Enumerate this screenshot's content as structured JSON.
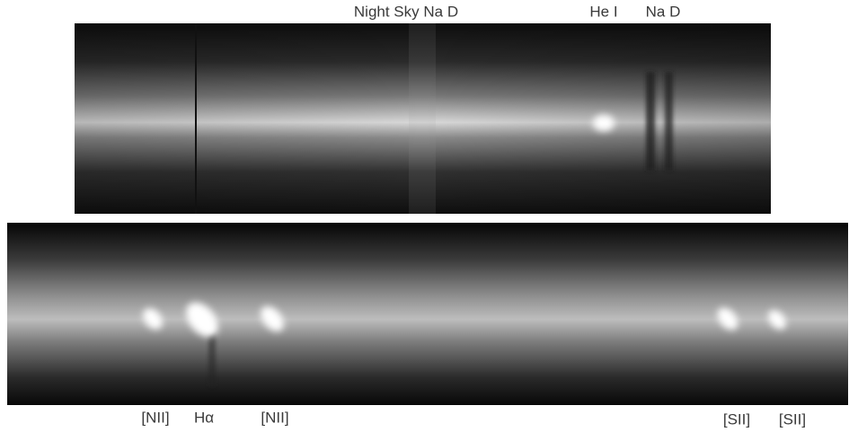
{
  "top_panel": {
    "labels": [
      "Night Sky Na D",
      "He I",
      "Na D"
    ]
  },
  "bottom_panel": {
    "labels": [
      "[NII]",
      "Hα",
      "[NII]",
      "[SII]",
      "[SII]"
    ]
  }
}
